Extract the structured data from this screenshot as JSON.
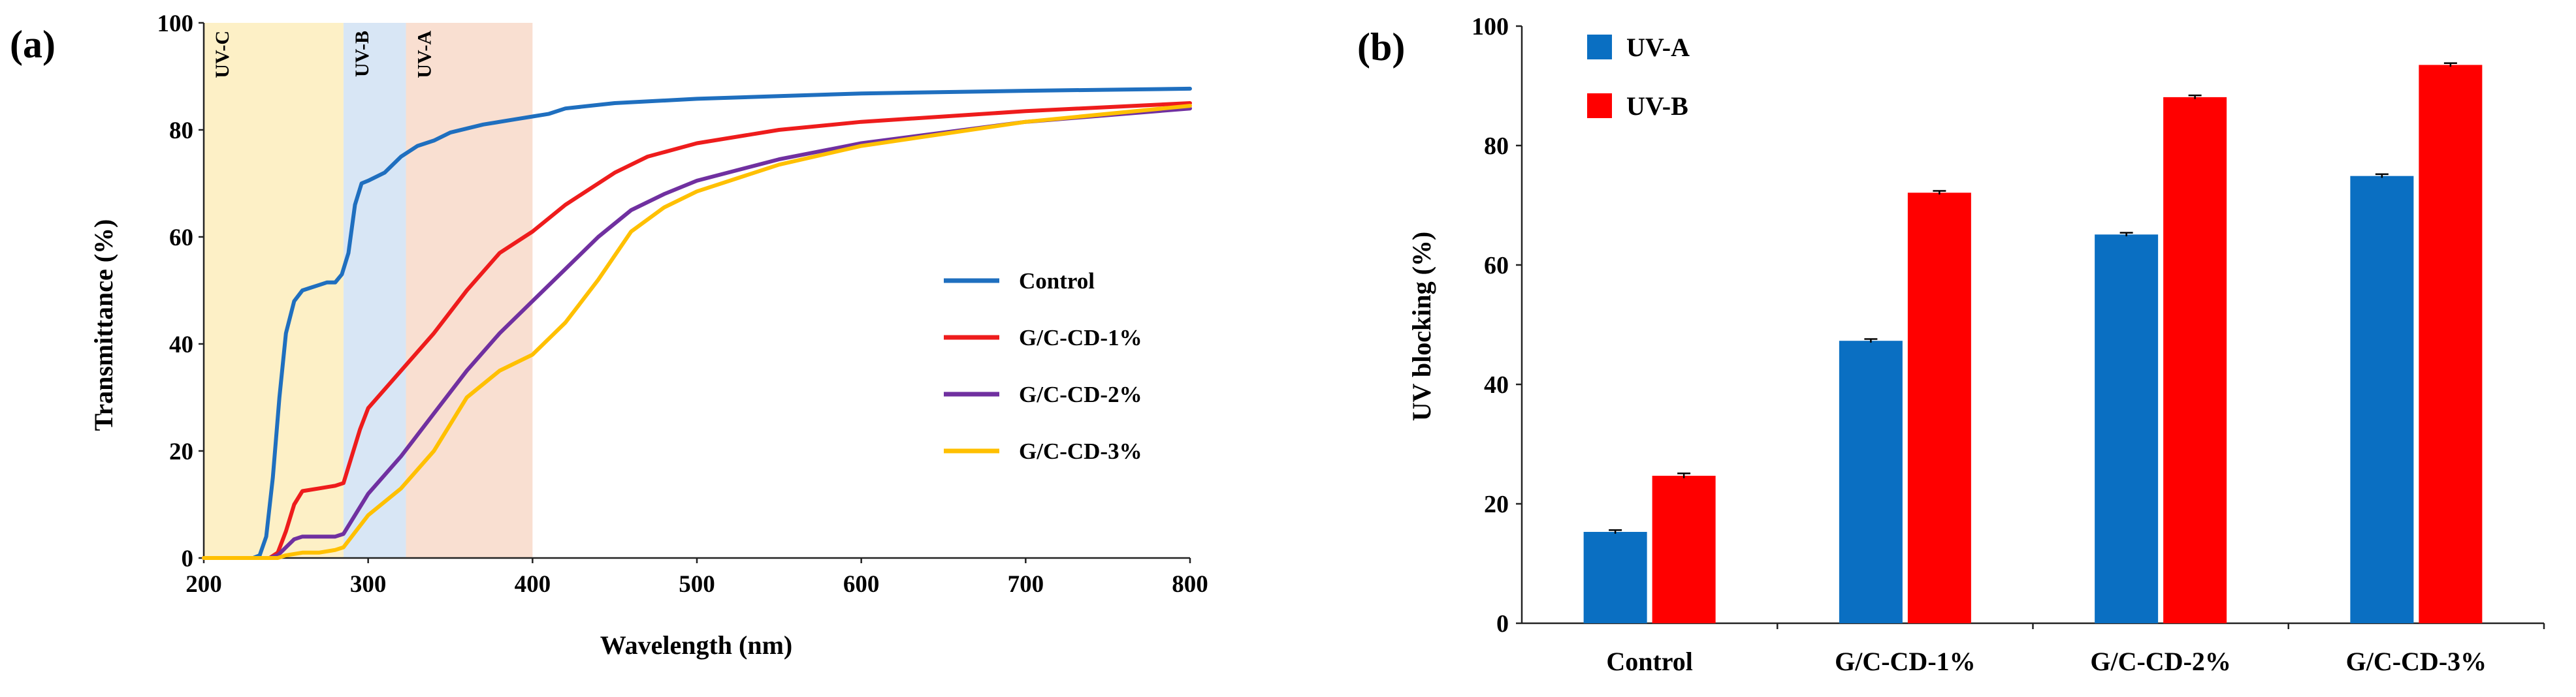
{
  "chart_data": [
    {
      "panel_label": "(a)",
      "type": "line",
      "xlabel": "Wavelength (nm)",
      "ylabel": "Transmittance (%)",
      "xlim": [
        200,
        800
      ],
      "ylim": [
        0,
        100
      ],
      "x_ticks": [
        "200",
        "300",
        "400",
        "500",
        "600",
        "700",
        "800"
      ],
      "y_ticks": [
        "0",
        "20",
        "40",
        "60",
        "80",
        "100"
      ],
      "regions": [
        {
          "name": "UV-C",
          "from": 200,
          "to": 285,
          "color": "#fdf0c6"
        },
        {
          "name": "UV-B",
          "from": 285,
          "to": 323,
          "color": "#d8e6f5"
        },
        {
          "name": "UV-A",
          "from": 323,
          "to": 400,
          "color": "#f9dfd1"
        }
      ],
      "series": [
        {
          "name": "Control",
          "color": "#1f6fbf",
          "x": [
            200,
            230,
            234,
            238,
            242,
            246,
            250,
            255,
            260,
            265,
            270,
            275,
            280,
            284,
            288,
            292,
            296,
            300,
            310,
            320,
            330,
            340,
            350,
            370,
            390,
            400,
            410,
            420,
            450,
            500,
            550,
            600,
            700,
            800
          ],
          "y": [
            0,
            0,
            0.5,
            4,
            15,
            30,
            42,
            48,
            50,
            50.5,
            51,
            51.5,
            51.5,
            53,
            57,
            66,
            70,
            70.5,
            72,
            75,
            77,
            78,
            79.5,
            81,
            82,
            82.5,
            83,
            84,
            85,
            85.8,
            86.3,
            86.8,
            87.3,
            87.7
          ]
        },
        {
          "name": "G/C-CD-1%",
          "color": "#ee1c1c",
          "x": [
            200,
            240,
            245,
            250,
            255,
            260,
            270,
            280,
            285,
            290,
            295,
            300,
            320,
            340,
            360,
            380,
            400,
            420,
            450,
            470,
            500,
            550,
            600,
            700,
            800
          ],
          "y": [
            0,
            0,
            1,
            5,
            10,
            12.5,
            13,
            13.5,
            14,
            19,
            24,
            28,
            35,
            42,
            50,
            57,
            61,
            66,
            72,
            75,
            77.5,
            80,
            81.5,
            83.5,
            85
          ]
        },
        {
          "name": "G/C-CD-2%",
          "color": "#7030a0",
          "x": [
            200,
            240,
            245,
            250,
            255,
            260,
            270,
            280,
            285,
            290,
            300,
            320,
            340,
            360,
            380,
            400,
            420,
            440,
            460,
            480,
            500,
            550,
            600,
            700,
            800
          ],
          "y": [
            0,
            0,
            0.5,
            2,
            3.5,
            4,
            4,
            4,
            4.5,
            7,
            12,
            19,
            27,
            35,
            42,
            48,
            54,
            60,
            65,
            68,
            70.5,
            74.5,
            77.5,
            81.5,
            84
          ]
        },
        {
          "name": "G/C-CD-3%",
          "color": "#ffc000",
          "x": [
            200,
            245,
            250,
            260,
            270,
            280,
            285,
            290,
            300,
            320,
            340,
            360,
            380,
            400,
            420,
            440,
            460,
            480,
            500,
            550,
            600,
            700,
            800
          ],
          "y": [
            0,
            0,
            0.5,
            1,
            1,
            1.5,
            2,
            4,
            8,
            13,
            20,
            30,
            35,
            38,
            44,
            52,
            61,
            65.5,
            68.5,
            73.5,
            77,
            81.5,
            84.5
          ]
        }
      ]
    },
    {
      "panel_label": "(b)",
      "type": "bar",
      "ylabel": "UV blocking (%)",
      "ylim": [
        0,
        100
      ],
      "y_ticks": [
        "0",
        "20",
        "40",
        "60",
        "80",
        "100"
      ],
      "categories": [
        "Control",
        "G/C-CD-1%",
        "G/C-CD-2%",
        "G/C-CD-3%"
      ],
      "series": [
        {
          "name": "UV-A",
          "color": "#0a6fc2",
          "values": [
            15.3,
            47.3,
            65.1,
            74.9
          ],
          "errors": [
            0.3,
            0.3,
            0.3,
            0.3
          ]
        },
        {
          "name": "UV-B",
          "color": "#ff0000",
          "values": [
            24.7,
            72.1,
            88.1,
            93.5
          ],
          "errors": [
            0.4,
            0.3,
            0.3,
            0.3
          ]
        }
      ]
    }
  ]
}
